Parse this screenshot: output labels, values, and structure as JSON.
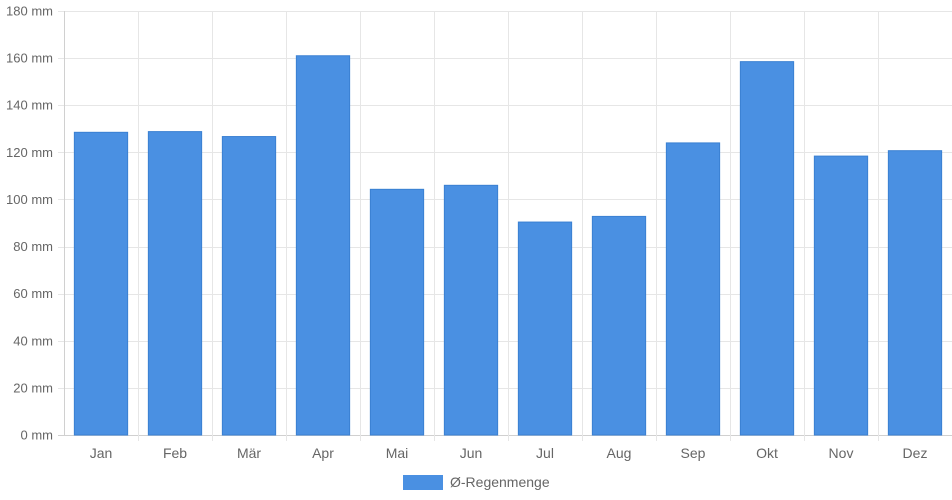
{
  "chart_data": {
    "type": "bar",
    "categories": [
      "Jan",
      "Feb",
      "Mär",
      "Apr",
      "Mai",
      "Jun",
      "Jul",
      "Aug",
      "Sep",
      "Okt",
      "Nov",
      "Dez"
    ],
    "series": [
      {
        "name": "Ø-Regenmenge",
        "values": [
          128.5,
          128.8,
          126.7,
          161.0,
          104.3,
          106.0,
          90.4,
          92.8,
          124.0,
          158.5,
          118.4,
          120.7
        ],
        "color": "#4a90e2"
      }
    ],
    "y_unit_suffix": " mm",
    "ylim": [
      0,
      180
    ],
    "yticks": [
      0,
      20,
      40,
      60,
      80,
      100,
      120,
      140,
      160,
      180
    ],
    "grid": true,
    "legend_position": "bottom-center"
  }
}
